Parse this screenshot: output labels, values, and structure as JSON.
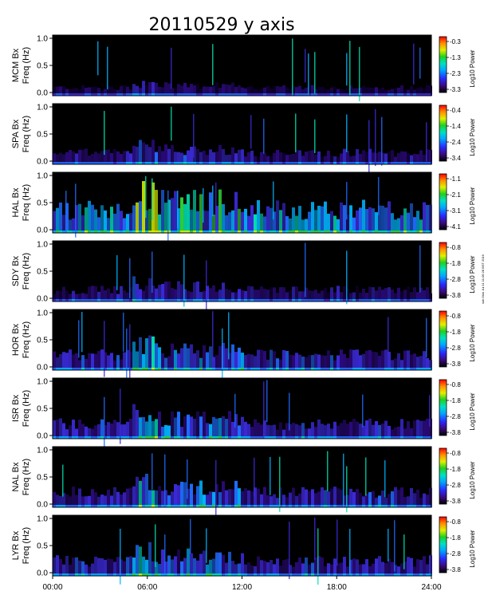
{
  "chart_data": {
    "type": "heatmap",
    "title": "20110529 y axis",
    "xlabel": "",
    "xticks": [
      "00:00",
      "06:00",
      "12:00",
      "18:00",
      "24:00"
    ],
    "xlim_hours": [
      0,
      24
    ],
    "ylim": [
      0,
      1
    ],
    "yticks": [
      "0.0",
      "0.5",
      "1.0"
    ],
    "colorbar_label": "Log10 Power",
    "side_note": "ssh Mon Jul 11 11:05:28 BST 2016",
    "panels": [
      {
        "station": "MCM",
        "ylabel_line1": "MCM Bx",
        "ylabel_line2": "Freq (Hz)",
        "cbar_ticks": [
          "-0.3",
          "-1.3",
          "-2.3",
          "-3.3"
        ],
        "intensity": 0.15
      },
      {
        "station": "SPA",
        "ylabel_line1": "SPA Bx",
        "ylabel_line2": "Freq (Hz)",
        "cbar_ticks": [
          "-0.4",
          "-1.4",
          "-2.4",
          "-3.4"
        ],
        "intensity": 0.25
      },
      {
        "station": "HAL",
        "ylabel_line1": "HAL Bx",
        "ylabel_line2": "Freq (Hz)",
        "cbar_ticks": [
          "-1.1",
          "-2.1",
          "-3.1",
          "-4.1"
        ],
        "intensity": 0.6
      },
      {
        "station": "SDY",
        "ylabel_line1": "SDY Bx",
        "ylabel_line2": "Freq (Hz)",
        "cbar_ticks": [
          "-0.8",
          "-1.8",
          "-2.8",
          "-3.8"
        ],
        "intensity": 0.25
      },
      {
        "station": "HOR",
        "ylabel_line1": "HOR Bx",
        "ylabel_line2": "Freq (Hz)",
        "cbar_ticks": [
          "-0.8",
          "-1.8",
          "-2.8",
          "-3.8"
        ],
        "intensity": 0.35
      },
      {
        "station": "ISR",
        "ylabel_line1": "ISR Bx",
        "ylabel_line2": "Freq (Hz)",
        "cbar_ticks": [
          "-0.8",
          "-1.8",
          "-2.8",
          "-3.8"
        ],
        "intensity": 0.35
      },
      {
        "station": "NAL",
        "ylabel_line1": "NAL Bx",
        "ylabel_line2": "Freq (Hz)",
        "cbar_ticks": [
          "-0.8",
          "-1.8",
          "-2.8",
          "-3.8"
        ],
        "intensity": 0.35
      },
      {
        "station": "LYR",
        "ylabel_line1": "LYR Bx",
        "ylabel_line2": "Freq (Hz)",
        "cbar_ticks": [
          "-0.8",
          "-1.8",
          "-2.8",
          "-3.8"
        ],
        "intensity": 0.35
      }
    ]
  }
}
